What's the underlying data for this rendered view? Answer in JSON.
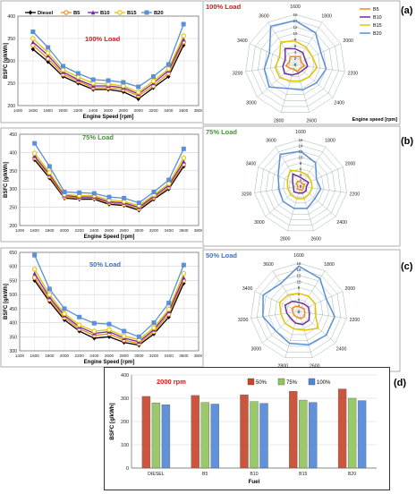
{
  "panel_labels": [
    "(a)",
    "(b)",
    "(c)",
    "(d)"
  ],
  "chart_data": [
    {
      "type": "line",
      "id": "bsfc100",
      "annotation": "100% Load",
      "annotation_color": "#e0161b",
      "xlabel": "Engine Speed [rpm]",
      "ylabel": "BSFC [g/kWh]",
      "xlim": [
        1400,
        3800
      ],
      "ylim": [
        200,
        400
      ],
      "xticks": [
        1400,
        1600,
        1800,
        2000,
        2200,
        2400,
        2600,
        2800,
        3000,
        3200,
        3400,
        3600,
        3800
      ],
      "yticks": [
        200,
        250,
        300,
        350,
        400
      ],
      "x": [
        1600,
        1800,
        2000,
        2200,
        2400,
        2600,
        2800,
        3000,
        3200,
        3400,
        3600
      ],
      "series": [
        {
          "name": "Diesel",
          "color": "#000000",
          "marker": "diamond",
          "values": [
            326,
            298,
            265,
            250,
            236,
            236,
            231,
            215,
            240,
            265,
            335
          ]
        },
        {
          "name": "B5",
          "color": "#f28a1e",
          "marker": "circle",
          "values": [
            335,
            305,
            270,
            255,
            240,
            240,
            236,
            222,
            244,
            272,
            342
          ]
        },
        {
          "name": "B10",
          "color": "#6f2ea0",
          "marker": "triangle",
          "values": [
            342,
            312,
            275,
            258,
            244,
            244,
            240,
            226,
            250,
            278,
            348
          ]
        },
        {
          "name": "B15",
          "color": "#e3c400",
          "marker": "circle",
          "values": [
            350,
            318,
            280,
            264,
            250,
            248,
            244,
            230,
            255,
            282,
            356
          ]
        },
        {
          "name": "B20",
          "color": "#5b8fd6",
          "marker": "square",
          "values": [
            365,
            330,
            288,
            272,
            258,
            256,
            252,
            242,
            265,
            292,
            382
          ]
        }
      ]
    },
    {
      "type": "line",
      "id": "bsfc75",
      "annotation": "75% Load",
      "annotation_color": "#3c9a2e",
      "xlabel": "Engine Speed [rpm]",
      "ylabel": "BSFC [g/kWh]",
      "xlim": [
        1400,
        3800
      ],
      "ylim": [
        200,
        450
      ],
      "xticks": [
        1400,
        1600,
        1800,
        2000,
        2200,
        2400,
        2600,
        2800,
        3000,
        3200,
        3400,
        3600,
        3800
      ],
      "yticks": [
        200,
        250,
        300,
        350,
        400,
        450
      ],
      "x": [
        1600,
        1800,
        2000,
        2200,
        2400,
        2600,
        2800,
        3000,
        3200,
        3400,
        3600
      ],
      "series": [
        {
          "name": "Diesel",
          "color": "#000000",
          "marker": "diamond",
          "values": [
            380,
            330,
            275,
            272,
            272,
            258,
            255,
            242,
            272,
            300,
            362
          ]
        },
        {
          "name": "B5",
          "color": "#f28a1e",
          "marker": "circle",
          "values": [
            385,
            335,
            278,
            275,
            275,
            262,
            258,
            246,
            276,
            305,
            368
          ]
        },
        {
          "name": "B10",
          "color": "#6f2ea0",
          "marker": "triangle",
          "values": [
            390,
            340,
            282,
            278,
            278,
            265,
            262,
            250,
            280,
            310,
            375
          ]
        },
        {
          "name": "B15",
          "color": "#e3c400",
          "marker": "circle",
          "values": [
            398,
            345,
            285,
            282,
            282,
            270,
            266,
            255,
            284,
            315,
            385
          ]
        },
        {
          "name": "B20",
          "color": "#5b8fd6",
          "marker": "square",
          "values": [
            425,
            362,
            292,
            290,
            288,
            278,
            275,
            262,
            292,
            325,
            410
          ]
        }
      ]
    },
    {
      "type": "line",
      "id": "bsfc50",
      "annotation": "50% Load",
      "annotation_color": "#3a6fd8",
      "xlabel": "Engine Speed [rpm]",
      "ylabel": "BSFC [g/kWh]",
      "xlim": [
        1400,
        3800
      ],
      "ylim": [
        300,
        650
      ],
      "xticks": [
        1400,
        1600,
        1800,
        2000,
        2200,
        2400,
        2600,
        2800,
        3000,
        3200,
        3400,
        3600,
        3800
      ],
      "yticks": [
        300,
        350,
        400,
        450,
        500,
        550,
        600,
        650
      ],
      "x": [
        1600,
        1800,
        2000,
        2200,
        2400,
        2600,
        2800,
        3000,
        3200,
        3400,
        3600
      ],
      "series": [
        {
          "name": "Diesel",
          "color": "#000000",
          "marker": "diamond",
          "values": [
            550,
            475,
            410,
            370,
            345,
            350,
            330,
            320,
            360,
            420,
            540
          ]
        },
        {
          "name": "B5",
          "color": "#f28a1e",
          "marker": "circle",
          "values": [
            560,
            482,
            418,
            378,
            355,
            360,
            338,
            326,
            368,
            430,
            550
          ]
        },
        {
          "name": "B10",
          "color": "#6f2ea0",
          "marker": "triangle",
          "values": [
            575,
            490,
            425,
            385,
            362,
            368,
            345,
            332,
            375,
            440,
            560
          ]
        },
        {
          "name": "B15",
          "color": "#e3c400",
          "marker": "circle",
          "values": [
            590,
            500,
            432,
            392,
            370,
            375,
            352,
            340,
            382,
            448,
            575
          ]
        },
        {
          "name": "B20",
          "color": "#5b8fd6",
          "marker": "square",
          "values": [
            640,
            520,
            450,
            420,
            398,
            395,
            370,
            350,
            400,
            470,
            605
          ]
        }
      ]
    },
    {
      "type": "radar",
      "id": "radar100",
      "annotation": "100% Load",
      "annotation_color": "#e0161b",
      "angle_labels": [
        "1600",
        "1800",
        "2000",
        "2200",
        "2400",
        "2600",
        "2800",
        "3000",
        "3200",
        "3400",
        "3600"
      ],
      "radial_ticks": [
        0,
        2,
        4,
        6,
        8,
        10,
        12,
        14,
        16
      ],
      "rmax": 16,
      "extra_label": "Engine speed [rpm]",
      "series": [
        {
          "name": "B5",
          "color": "#f28a1e",
          "values": [
            2.5,
            3,
            2,
            3,
            2,
            2.5,
            1.5,
            2,
            3,
            2,
            3
          ]
        },
        {
          "name": "B10",
          "color": "#6f2ea0",
          "values": [
            5,
            4.5,
            3.5,
            4,
            3,
            3,
            3.5,
            4.5,
            4,
            3.5,
            6
          ]
        },
        {
          "name": "B15",
          "color": "#e3c400",
          "values": [
            7.5,
            6.5,
            6,
            7,
            6,
            5.5,
            5.5,
            6.5,
            6.5,
            5.5,
            8.5
          ]
        },
        {
          "name": "B20",
          "color": "#5b8fd6",
          "values": [
            14,
            12,
            9,
            10,
            9,
            8.5,
            8,
            11,
            10,
            9,
            14.5
          ]
        }
      ]
    },
    {
      "type": "radar",
      "id": "radar75",
      "annotation": "75% Load",
      "annotation_color": "#3c9a2e",
      "angle_labels": [
        "1600",
        "1800",
        "2000",
        "2200",
        "2400",
        "2600",
        "2800",
        "3000",
        "3200",
        "3400",
        "3600"
      ],
      "radial_ticks": [
        0,
        2,
        4,
        6,
        8,
        10,
        12,
        14,
        16
      ],
      "rmax": 16,
      "extra_label": "",
      "series": [
        {
          "name": "B5",
          "color": "#f28a1e",
          "values": [
            1.5,
            1,
            1.5,
            1,
            1.2,
            1.5,
            1.2,
            1.5,
            1,
            1.5,
            2
          ]
        },
        {
          "name": "B10",
          "color": "#6f2ea0",
          "values": [
            3,
            2.5,
            3,
            2,
            2.5,
            2.5,
            2.5,
            3,
            2.5,
            3,
            5
          ]
        },
        {
          "name": "B15",
          "color": "#e3c400",
          "values": [
            5,
            4.5,
            4,
            4,
            4,
            4.5,
            4.5,
            4.5,
            4.5,
            5,
            6.5
          ]
        },
        {
          "name": "B20",
          "color": "#5b8fd6",
          "values": [
            12,
            9.5,
            6,
            7,
            6.5,
            8,
            8,
            8,
            7.5,
            8.5,
            13
          ]
        }
      ]
    },
    {
      "type": "radar",
      "id": "radar50",
      "annotation": "50% Load",
      "annotation_color": "#3a6fd8",
      "angle_labels": [
        "1600",
        "1800",
        "2000",
        "2200",
        "2400",
        "2600",
        "2800",
        "3000",
        "3200",
        "3400",
        "3600"
      ],
      "radial_ticks": [
        0,
        2,
        4,
        6,
        8,
        10,
        12,
        14,
        16
      ],
      "rmax": 16,
      "extra_label": "",
      "series": [
        {
          "name": "B5",
          "color": "#f28a1e",
          "values": [
            1.5,
            1.5,
            2,
            2,
            2.5,
            2.5,
            2,
            2,
            2,
            2.5,
            2
          ]
        },
        {
          "name": "B10",
          "color": "#6f2ea0",
          "values": [
            3,
            3,
            3.5,
            3.5,
            4.5,
            4.5,
            4,
            3.5,
            4,
            5,
            4
          ]
        },
        {
          "name": "B15",
          "color": "#e3c400",
          "values": [
            6,
            6,
            6,
            5.5,
            8.5,
            6.5,
            6,
            6,
            6,
            7,
            6.5
          ]
        },
        {
          "name": "B20",
          "color": "#5b8fd6",
          "values": [
            15,
            13,
            10,
            12,
            12,
            11.5,
            11,
            10,
            12,
            13,
            11
          ]
        }
      ]
    },
    {
      "type": "bar",
      "id": "bars2000",
      "annotation": "2000 rpm",
      "annotation_color": "#e0161b",
      "xlabel": "Fuel",
      "ylabel": "BSFC [g/kWh]",
      "ylim": [
        0,
        400
      ],
      "yticks": [
        0,
        100,
        200,
        300,
        400
      ],
      "categories": [
        "DIESEL",
        "B5",
        "B10",
        "B15",
        "B20"
      ],
      "series": [
        {
          "name": "50%",
          "color": "#c7432a",
          "values": [
            308,
            312,
            315,
            330,
            340
          ]
        },
        {
          "name": "75%",
          "color": "#8fc45a",
          "values": [
            280,
            282,
            286,
            292,
            300
          ]
        },
        {
          "name": "100%",
          "color": "#4f86d8",
          "values": [
            272,
            275,
            278,
            282,
            290
          ]
        }
      ]
    }
  ]
}
